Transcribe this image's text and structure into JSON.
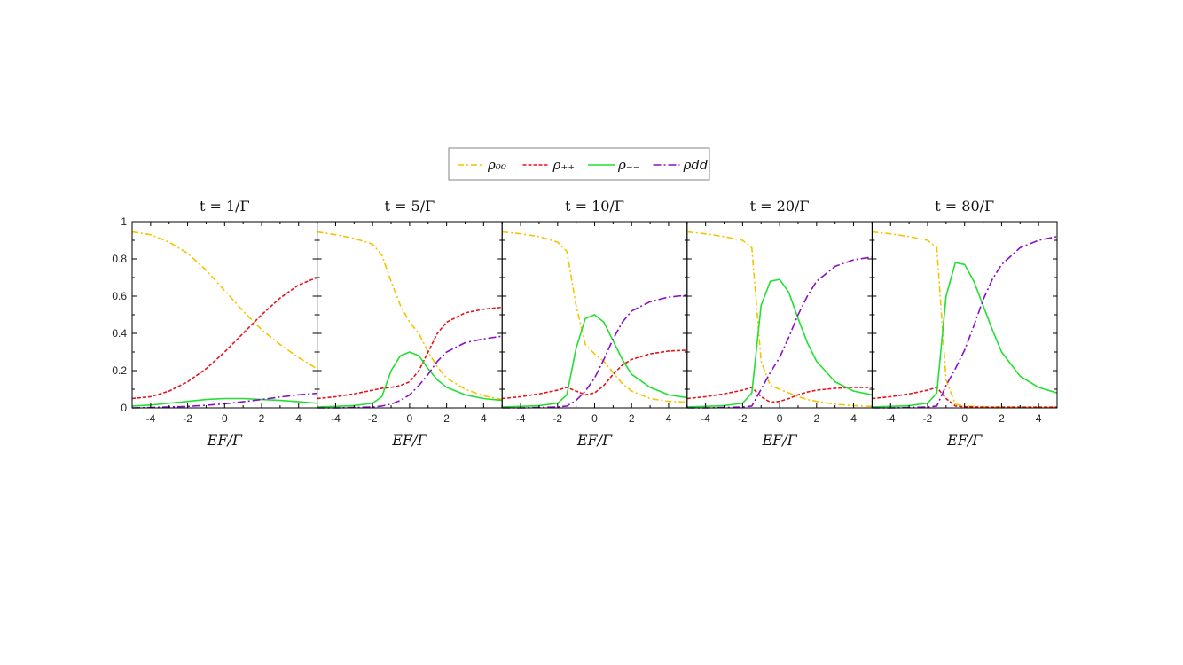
{
  "colors": {
    "rho00": "#f5c400",
    "rhopp": "#e8121b",
    "rhomm": "#22e032",
    "rhodd": "#8a10c8"
  },
  "legend": {
    "items": [
      {
        "key": "rho00",
        "label": "ρ₀₀",
        "dash": "7 3 2 3"
      },
      {
        "key": "rhopp",
        "label": "ρ₊₊",
        "dash": "4 2"
      },
      {
        "key": "rhomm",
        "label": "ρ₋₋",
        "dash": ""
      },
      {
        "key": "rhodd",
        "label": "ρdd",
        "dash": "9 3 2 3"
      }
    ]
  },
  "chart_data": [
    {
      "type": "line",
      "title": "t = 1/Γ",
      "xlabel": "EF/Γ",
      "xlim": [
        -5,
        5
      ],
      "ylim": [
        0,
        1
      ],
      "xticks": [
        "-4",
        "-2",
        "0",
        "2",
        "4"
      ],
      "yticks": [
        "0",
        "0.2",
        "0.4",
        "0.6",
        "0.8",
        "1"
      ],
      "x": [
        -5,
        -4,
        -3,
        -2,
        -1,
        0,
        1,
        2,
        3,
        4,
        5
      ],
      "series": [
        {
          "key": "rho00",
          "values": [
            0.945,
            0.93,
            0.89,
            0.83,
            0.74,
            0.63,
            0.52,
            0.42,
            0.34,
            0.27,
            0.21
          ]
        },
        {
          "key": "rhopp",
          "values": [
            0.05,
            0.06,
            0.09,
            0.14,
            0.21,
            0.3,
            0.4,
            0.5,
            0.59,
            0.66,
            0.7
          ]
        },
        {
          "key": "rhomm",
          "values": [
            0.01,
            0.015,
            0.025,
            0.035,
            0.045,
            0.05,
            0.05,
            0.045,
            0.04,
            0.033,
            0.025
          ]
        },
        {
          "key": "rhodd",
          "values": [
            0.0,
            0.002,
            0.005,
            0.008,
            0.014,
            0.022,
            0.033,
            0.045,
            0.058,
            0.07,
            0.078
          ]
        }
      ]
    },
    {
      "type": "line",
      "title": "t = 5/Γ",
      "xlabel": "EF/Γ",
      "xlim": [
        -5,
        5
      ],
      "ylim": [
        0,
        1
      ],
      "xticks": [
        "-4",
        "-2",
        "0",
        "2",
        "4"
      ],
      "yticks": [],
      "x": [
        -5,
        -4,
        -3,
        -2,
        -1.5,
        -1,
        -0.5,
        0,
        0.5,
        1,
        1.5,
        2,
        3,
        4,
        5
      ],
      "series": [
        {
          "key": "rho00",
          "values": [
            0.945,
            0.93,
            0.91,
            0.88,
            0.82,
            0.68,
            0.55,
            0.46,
            0.4,
            0.3,
            0.22,
            0.16,
            0.1,
            0.065,
            0.045
          ]
        },
        {
          "key": "rhopp",
          "values": [
            0.05,
            0.06,
            0.075,
            0.095,
            0.105,
            0.11,
            0.12,
            0.14,
            0.2,
            0.3,
            0.4,
            0.46,
            0.51,
            0.53,
            0.54
          ]
        },
        {
          "key": "rhomm",
          "values": [
            0.005,
            0.008,
            0.012,
            0.025,
            0.06,
            0.2,
            0.28,
            0.3,
            0.28,
            0.21,
            0.15,
            0.11,
            0.07,
            0.05,
            0.04
          ]
        },
        {
          "key": "rhodd",
          "values": [
            0.0,
            0.0,
            0.002,
            0.005,
            0.01,
            0.02,
            0.04,
            0.07,
            0.12,
            0.18,
            0.25,
            0.3,
            0.35,
            0.37,
            0.385
          ]
        }
      ]
    },
    {
      "type": "line",
      "title": "t = 10/Γ",
      "xlabel": "EF/Γ",
      "xlim": [
        -5,
        5
      ],
      "ylim": [
        0,
        1
      ],
      "xticks": [
        "-4",
        "-2",
        "0",
        "2",
        "4"
      ],
      "yticks": [],
      "x": [
        -5,
        -4,
        -3,
        -2,
        -1.5,
        -1,
        -0.5,
        0,
        0.5,
        1,
        1.5,
        2,
        3,
        4,
        5
      ],
      "series": [
        {
          "key": "rho00",
          "values": [
            0.945,
            0.935,
            0.92,
            0.89,
            0.84,
            0.55,
            0.34,
            0.29,
            0.25,
            0.19,
            0.13,
            0.09,
            0.05,
            0.035,
            0.03
          ]
        },
        {
          "key": "rhopp",
          "values": [
            0.05,
            0.06,
            0.075,
            0.095,
            0.11,
            0.09,
            0.07,
            0.08,
            0.12,
            0.18,
            0.23,
            0.26,
            0.29,
            0.305,
            0.31
          ]
        },
        {
          "key": "rhomm",
          "values": [
            0.005,
            0.008,
            0.012,
            0.025,
            0.07,
            0.32,
            0.48,
            0.5,
            0.46,
            0.36,
            0.26,
            0.18,
            0.11,
            0.07,
            0.055
          ]
        },
        {
          "key": "rhodd",
          "values": [
            0.0,
            0.0,
            0.002,
            0.005,
            0.01,
            0.04,
            0.09,
            0.16,
            0.26,
            0.37,
            0.46,
            0.52,
            0.57,
            0.595,
            0.605
          ]
        }
      ]
    },
    {
      "type": "line",
      "title": "t = 20/Γ",
      "xlabel": "EF/Γ",
      "xlim": [
        -5,
        5
      ],
      "ylim": [
        0,
        1
      ],
      "xticks": [
        "-4",
        "-2",
        "0",
        "2",
        "4"
      ],
      "yticks": [],
      "x": [
        -5,
        -4,
        -3,
        -2,
        -1.5,
        -1,
        -0.5,
        0,
        0.5,
        1,
        1.5,
        2,
        3,
        4,
        5
      ],
      "series": [
        {
          "key": "rho00",
          "values": [
            0.945,
            0.935,
            0.92,
            0.9,
            0.86,
            0.25,
            0.12,
            0.1,
            0.08,
            0.06,
            0.045,
            0.035,
            0.02,
            0.012,
            0.008
          ]
        },
        {
          "key": "rhopp",
          "values": [
            0.05,
            0.06,
            0.075,
            0.095,
            0.11,
            0.06,
            0.03,
            0.035,
            0.05,
            0.07,
            0.085,
            0.095,
            0.105,
            0.11,
            0.11
          ]
        },
        {
          "key": "rhomm",
          "values": [
            0.005,
            0.008,
            0.012,
            0.025,
            0.08,
            0.55,
            0.68,
            0.69,
            0.62,
            0.48,
            0.35,
            0.25,
            0.14,
            0.09,
            0.07
          ]
        },
        {
          "key": "rhodd",
          "values": [
            0.0,
            0.0,
            0.002,
            0.005,
            0.01,
            0.1,
            0.19,
            0.27,
            0.38,
            0.5,
            0.6,
            0.68,
            0.76,
            0.795,
            0.81
          ]
        }
      ]
    },
    {
      "type": "line",
      "title": "t = 80/Γ",
      "xlabel": "EF/Γ",
      "xlim": [
        -5,
        5
      ],
      "ylim": [
        0,
        1
      ],
      "xticks": [
        "-4",
        "-2",
        "0",
        "2",
        "4"
      ],
      "yticks": [],
      "x": [
        -5,
        -4,
        -3,
        -2,
        -1.5,
        -1,
        -0.5,
        0,
        0.5,
        1,
        1.5,
        2,
        3,
        4,
        5
      ],
      "series": [
        {
          "key": "rho00",
          "values": [
            0.945,
            0.935,
            0.92,
            0.9,
            0.86,
            0.15,
            0.02,
            0.01,
            0.008,
            0.006,
            0.005,
            0.005,
            0.004,
            0.004,
            0.004
          ]
        },
        {
          "key": "rhopp",
          "values": [
            0.05,
            0.06,
            0.075,
            0.095,
            0.11,
            0.05,
            0.01,
            0.006,
            0.005,
            0.004,
            0.004,
            0.004,
            0.004,
            0.004,
            0.004
          ]
        },
        {
          "key": "rhomm",
          "values": [
            0.005,
            0.008,
            0.012,
            0.025,
            0.08,
            0.6,
            0.78,
            0.77,
            0.68,
            0.55,
            0.42,
            0.3,
            0.17,
            0.11,
            0.08
          ]
        },
        {
          "key": "rhodd",
          "values": [
            0.0,
            0.0,
            0.002,
            0.005,
            0.01,
            0.12,
            0.21,
            0.31,
            0.44,
            0.58,
            0.69,
            0.77,
            0.86,
            0.9,
            0.92
          ]
        }
      ]
    }
  ]
}
